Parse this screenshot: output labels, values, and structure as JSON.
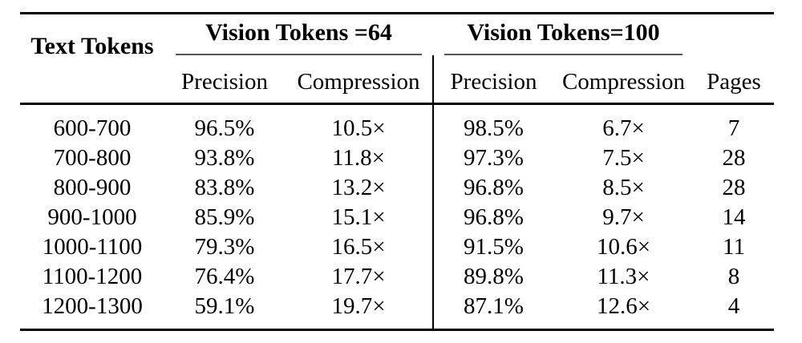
{
  "table": {
    "corner_label": "Text Tokens",
    "group1": {
      "label": "Vision Tokens =64",
      "precision_label": "Precision",
      "compression_label": "Compression"
    },
    "group2": {
      "label": "Vision Tokens=100",
      "precision_label": "Precision",
      "compression_label": "Compression"
    },
    "pages_label": "Pages",
    "rows": [
      {
        "text_tokens": "600-700",
        "p64": "96.5%",
        "c64": "10.5×",
        "p100": "98.5%",
        "c100": "6.7×",
        "pages": "7"
      },
      {
        "text_tokens": "700-800",
        "p64": "93.8%",
        "c64": "11.8×",
        "p100": "97.3%",
        "c100": "7.5×",
        "pages": "28"
      },
      {
        "text_tokens": "800-900",
        "p64": "83.8%",
        "c64": "13.2×",
        "p100": "96.8%",
        "c100": "8.5×",
        "pages": "28"
      },
      {
        "text_tokens": "900-1000",
        "p64": "85.9%",
        "c64": "15.1×",
        "p100": "96.8%",
        "c100": "9.7×",
        "pages": "14"
      },
      {
        "text_tokens": "1000-1100",
        "p64": "79.3%",
        "c64": "16.5×",
        "p100": "91.5%",
        "c100": "10.6×",
        "pages": "11"
      },
      {
        "text_tokens": "1100-1200",
        "p64": "76.4%",
        "c64": "17.7×",
        "p100": "89.8%",
        "c100": "11.3×",
        "pages": "8"
      },
      {
        "text_tokens": "1200-1300",
        "p64": "59.1%",
        "c64": "19.7×",
        "p100": "87.1%",
        "c100": "12.6×",
        "pages": "4"
      }
    ],
    "colors": {
      "text": "#000000",
      "rule": "#000000",
      "cmidrule": "#555555",
      "background": "#ffffff"
    }
  }
}
